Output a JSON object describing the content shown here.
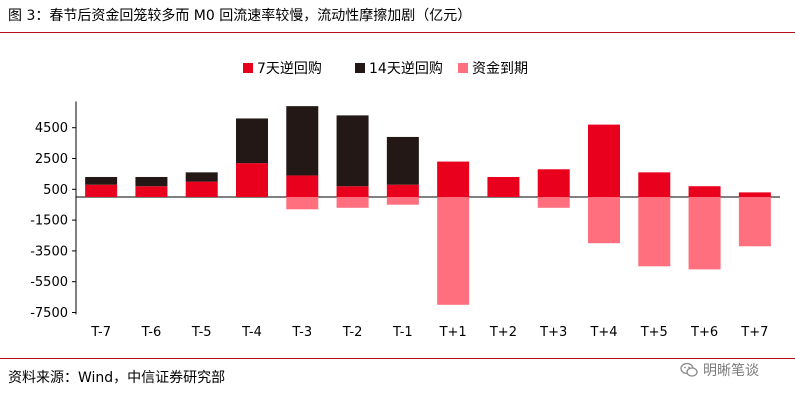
{
  "header": {
    "title": "图 3：春节后资金回笼较多而 M0 回流速率较慢，流动性摩擦加剧（亿元）"
  },
  "footer": {
    "source": "资料来源：Wind，中信证券研究部"
  },
  "watermark": {
    "text": "明晰笔谈",
    "icon": "wechat-icon"
  },
  "colors": {
    "repo7": "#e8001c",
    "repo14": "#231815",
    "maturity": "#ff6f7d",
    "rule": "#b30d1b"
  },
  "chart_data": {
    "type": "bar",
    "stacked": true,
    "categories": [
      "T-7",
      "T-6",
      "T-5",
      "T-4",
      "T-3",
      "T-2",
      "T-1",
      "T+1",
      "T+2",
      "T+3",
      "T+4",
      "T+5",
      "T+6",
      "T+7"
    ],
    "series": [
      {
        "name": "7天逆回购",
        "color": "#e8001c",
        "values": [
          800,
          700,
          1000,
          2200,
          1400,
          700,
          800,
          2300,
          1300,
          1800,
          4700,
          1600,
          700,
          300
        ]
      },
      {
        "name": "14天逆回购",
        "color": "#231815",
        "values": [
          500,
          600,
          600,
          2900,
          4500,
          4600,
          3100,
          0,
          0,
          0,
          0,
          0,
          0,
          0
        ]
      },
      {
        "name": "资金到期",
        "color": "#ff6f7d",
        "values": [
          0,
          0,
          0,
          0,
          -800,
          -700,
          -500,
          -7000,
          0,
          -700,
          -3000,
          -4500,
          -4700,
          -3200
        ]
      }
    ],
    "yticks": [
      4500,
      2500,
      500,
      -1500,
      -3500,
      -5500,
      -7500
    ],
    "ylim": [
      -7500,
      6000
    ],
    "legend_position": "top-center"
  }
}
